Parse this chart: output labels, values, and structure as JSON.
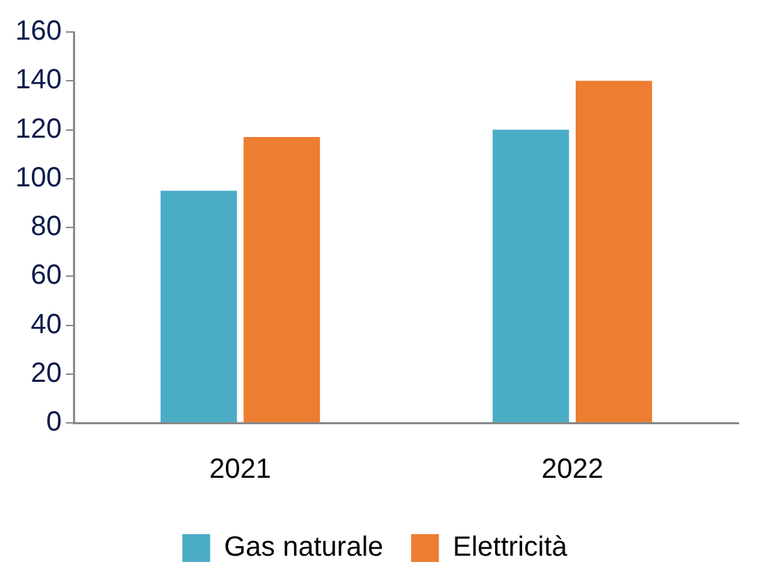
{
  "chart_data": {
    "type": "bar",
    "categories": [
      "2021",
      "2022"
    ],
    "series": [
      {
        "name": "Gas naturale",
        "color": "#4bacc6",
        "values": [
          95,
          120
        ]
      },
      {
        "name": "Elettricità",
        "color": "#ed7d31",
        "values": [
          117,
          140
        ]
      }
    ],
    "ylim": [
      0,
      160
    ],
    "yticks": [
      0,
      20,
      40,
      60,
      80,
      100,
      120,
      140,
      160
    ],
    "grid": false,
    "legend": "bottom"
  }
}
